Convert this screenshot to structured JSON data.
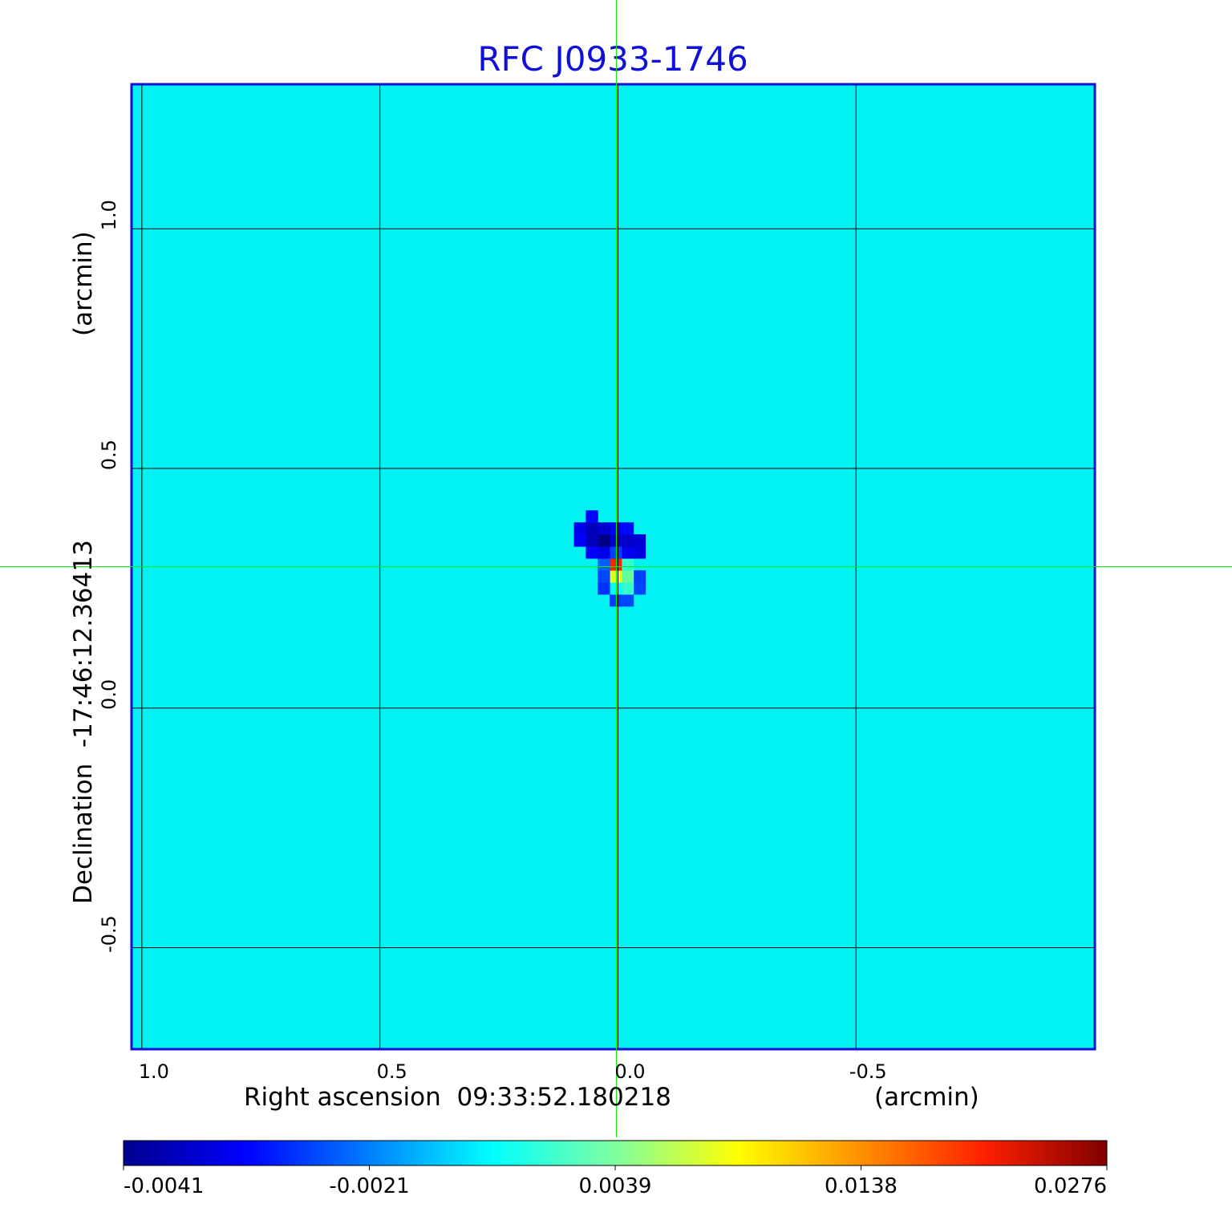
{
  "chart_data": {
    "type": "heatmap",
    "title": "RFC J0933-1746",
    "xlabel": "Right ascension  09:33:52.180218",
    "xunit": "(arcmin)",
    "ylabel": "Declination  -17:46:12.36413",
    "yunit": "(arcmin)",
    "xlim": [
      1.02,
      -1.0
    ],
    "ylim": [
      -0.71,
      1.3
    ],
    "x_ticks": [
      {
        "value": 1.0,
        "label": "1.0"
      },
      {
        "value": 0.5,
        "label": "0.5"
      },
      {
        "value": 0.0,
        "label": "0.0"
      },
      {
        "value": -0.5,
        "label": "-0.5"
      }
    ],
    "y_ticks": [
      {
        "value": 1.0,
        "label": "1.0"
      },
      {
        "value": 0.5,
        "label": "0.5"
      },
      {
        "value": 0.0,
        "label": "0.0"
      },
      {
        "value": -0.5,
        "label": "-0.5"
      }
    ],
    "grid": true,
    "crosshair": {
      "x": 0.0,
      "y": 0.295
    },
    "colorbar": {
      "range": [
        -0.0041,
        0.0276
      ],
      "ticks": [
        "-0.0041",
        "-0.0021",
        "0.0039",
        "0.0138",
        "0.0276"
      ],
      "colormap": "jet"
    },
    "background_value": 0.0005,
    "features": [
      {
        "kind": "peak",
        "x": 0.0,
        "y": 0.295,
        "value": 0.0276
      },
      {
        "kind": "secondary",
        "x": -0.01,
        "y": 0.26,
        "value": 0.0138
      },
      {
        "kind": "negative",
        "x": 0.03,
        "y": 0.35,
        "value": -0.0041
      },
      {
        "kind": "negative",
        "x": -0.03,
        "y": 0.34,
        "value": -0.003
      },
      {
        "kind": "negative",
        "x": 0.06,
        "y": 0.37,
        "value": -0.0021
      }
    ]
  },
  "colors": {
    "title": "#1010d8",
    "frame": "#1010d8",
    "crosshair": "#00ee00",
    "grid": "#000000"
  }
}
